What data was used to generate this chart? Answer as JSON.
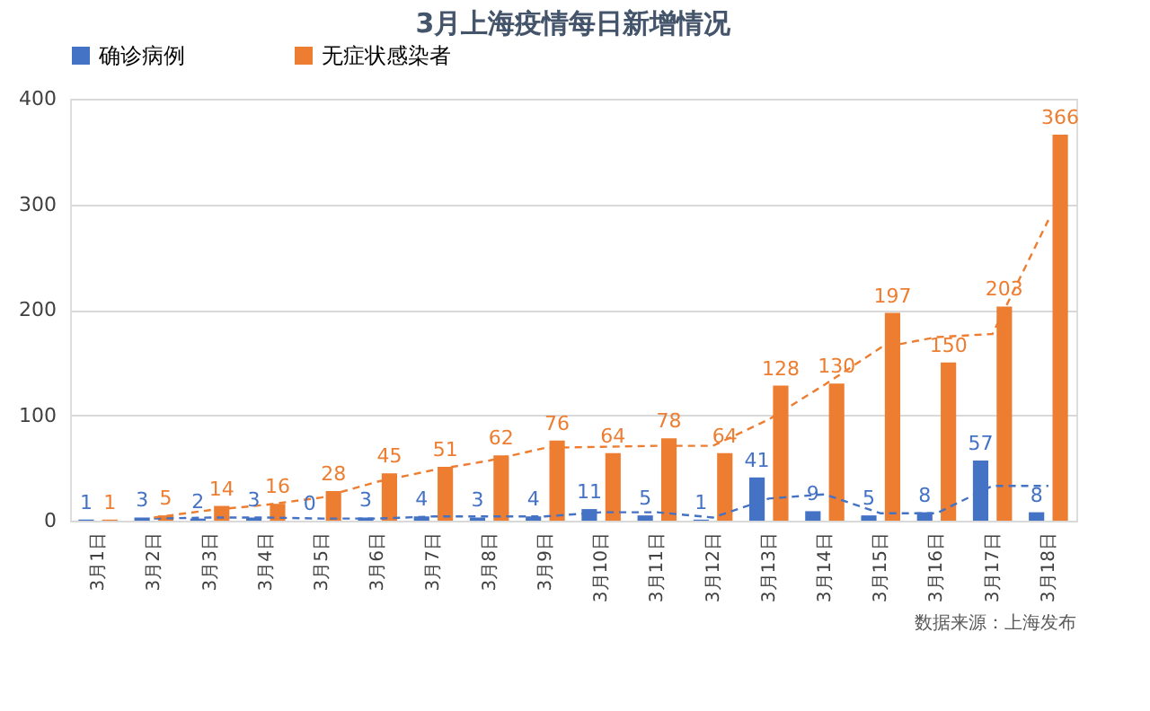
{
  "chart_data": {
    "type": "bar",
    "title": "3月上海疫情每日新增情况",
    "categories": [
      "3月1日",
      "3月2日",
      "3月3日",
      "3月4日",
      "3月5日",
      "3月6日",
      "3月7日",
      "3月8日",
      "3月9日",
      "3月10日",
      "3月11日",
      "3月12日",
      "3月13日",
      "3月14日",
      "3月15日",
      "3月16日",
      "3月17日",
      "3月18日"
    ],
    "series": [
      {
        "name": "确诊病例",
        "color": "#4472c4",
        "values": [
          1,
          3,
          2,
          3,
          0,
          3,
          4,
          3,
          4,
          11,
          5,
          1,
          41,
          9,
          5,
          8,
          57,
          8
        ],
        "value_labels": [
          "1",
          "3",
          "2",
          "3",
          "0",
          "3",
          "4",
          "3",
          "4",
          "11",
          "5",
          "1",
          "41",
          "9",
          "5",
          "8",
          "57",
          "8"
        ]
      },
      {
        "name": "无症状感染者",
        "color": "#ed7d31",
        "values": [
          1,
          5,
          14,
          16,
          28,
          45,
          51,
          62,
          76,
          64,
          78,
          64,
          128,
          130,
          197,
          150,
          203,
          366
        ],
        "value_labels": [
          "1",
          "5",
          "14",
          "16",
          "28",
          "45",
          "51",
          "62",
          "76",
          "64",
          "78",
          "64",
          "128",
          "130",
          "197",
          "150",
          "203",
          "366"
        ]
      },
      {
        "type": "line",
        "line_style": "dashed",
        "color": "#4472c4",
        "values": [
          null,
          2,
          3,
          3,
          2,
          2,
          4,
          4,
          4,
          8,
          8,
          3,
          21,
          25,
          7,
          7,
          33,
          33
        ]
      },
      {
        "type": "line",
        "line_style": "dashed",
        "color": "#ed7d31",
        "values": [
          null,
          3,
          10,
          15,
          22,
          37,
          48,
          57,
          69,
          70,
          71,
          71,
          96,
          129,
          164,
          174,
          177,
          285
        ]
      }
    ],
    "ylim": [
      0,
      400
    ],
    "yticks": [
      0,
      100,
      200,
      300,
      400
    ],
    "grid": "y",
    "legend": "top",
    "annotations": [
      "数据来源：上海发布"
    ]
  }
}
